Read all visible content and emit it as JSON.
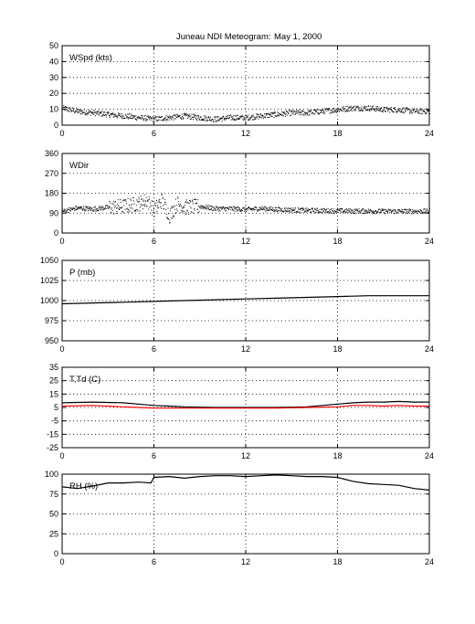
{
  "title": {
    "station": "Juneau NDI Meteogram:",
    "date": "May   1, 2000"
  },
  "chart_data": [
    {
      "type": "scatter",
      "label": "WSpd (kts)",
      "x_ticks": [
        "0",
        "6",
        "12",
        "18",
        "24"
      ],
      "xlim": [
        0,
        24
      ],
      "ylim": [
        0,
        50
      ],
      "y_ticks": [
        "0",
        "10",
        "20",
        "30",
        "40",
        "50"
      ],
      "grid": true,
      "series": [
        {
          "color": "#000000",
          "x": [
            0,
            1,
            2,
            3,
            4,
            5,
            6,
            7,
            8,
            9,
            10,
            11,
            12,
            13,
            14,
            15,
            16,
            17,
            18,
            19,
            20,
            21,
            22,
            23,
            24
          ],
          "y": [
            11,
            9,
            8,
            7,
            6,
            5,
            4,
            5,
            6,
            5,
            4,
            5,
            5,
            6,
            7,
            8,
            8,
            9,
            10,
            11,
            11,
            10,
            10,
            9,
            9
          ]
        }
      ]
    },
    {
      "type": "scatter",
      "label": "WDir",
      "x_ticks": [
        "0",
        "6",
        "12",
        "18",
        "24"
      ],
      "xlim": [
        0,
        24
      ],
      "ylim": [
        0,
        360
      ],
      "y_ticks": [
        "0",
        "90",
        "180",
        "270",
        "360"
      ],
      "grid": true,
      "series": [
        {
          "color": "#000000",
          "x": [
            0,
            1,
            2,
            3,
            4,
            5,
            5.5,
            6,
            6.5,
            7,
            7.5,
            8,
            9,
            10,
            11,
            12,
            13,
            14,
            15,
            16,
            17,
            18,
            19,
            20,
            21,
            22,
            23,
            24
          ],
          "y": [
            100,
            115,
            110,
            118,
            122,
            135,
            150,
            105,
            150,
            80,
            135,
            118,
            122,
            112,
            112,
            108,
            113,
            108,
            106,
            104,
            103,
            102,
            101,
            101,
            100,
            100,
            100,
            100
          ]
        }
      ]
    },
    {
      "type": "line",
      "label": "P (mb)",
      "x_ticks": [
        "0",
        "6",
        "12",
        "18",
        "24"
      ],
      "xlim": [
        0,
        24
      ],
      "ylim": [
        950,
        1050
      ],
      "y_ticks": [
        "950",
        "975",
        "1000",
        "1025",
        "1050"
      ],
      "grid": true,
      "series": [
        {
          "color": "#000000",
          "x": [
            0,
            2,
            4,
            6,
            8,
            10,
            12,
            14,
            16,
            18,
            20,
            22,
            24
          ],
          "y": [
            996,
            997,
            998,
            999,
            1000,
            1001,
            1002,
            1003,
            1004,
            1005,
            1006,
            1006,
            1006
          ]
        }
      ]
    },
    {
      "type": "line",
      "label": "T,Td (C)",
      "x_ticks": [
        "0",
        "6",
        "12",
        "18",
        "24"
      ],
      "xlim": [
        0,
        24
      ],
      "ylim": [
        -25,
        35
      ],
      "y_ticks": [
        "-25",
        "-15",
        "-5",
        "5",
        "15",
        "25",
        "35"
      ],
      "grid": true,
      "series": [
        {
          "color": "#000000",
          "x": [
            0,
            2,
            4,
            5,
            6,
            7,
            8,
            10,
            12,
            14,
            16,
            18,
            19,
            20,
            21,
            22,
            23,
            24
          ],
          "y": [
            8.5,
            9,
            8.5,
            7.5,
            6.5,
            6,
            5.5,
            5,
            5,
            5,
            5.5,
            7.5,
            8.5,
            9,
            9,
            9.5,
            9,
            9
          ]
        },
        {
          "color": "#ff0000",
          "x": [
            0,
            2,
            4,
            5,
            6,
            7,
            8,
            10,
            12,
            14,
            16,
            18,
            19,
            20,
            21,
            22,
            23,
            24
          ],
          "y": [
            6,
            6.5,
            5.5,
            5,
            4.5,
            4.5,
            4.5,
            4.5,
            4.5,
            4.5,
            5,
            5.5,
            6.5,
            6.5,
            6,
            6.5,
            6,
            6
          ]
        }
      ]
    },
    {
      "type": "line",
      "label": "RH (%)",
      "x_ticks": [
        "0",
        "6",
        "12",
        "18",
        "24"
      ],
      "xlim": [
        0,
        24
      ],
      "ylim": [
        0,
        100
      ],
      "y_ticks": [
        "0",
        "25",
        "50",
        "75",
        "100"
      ],
      "grid": true,
      "series": [
        {
          "color": "#000000",
          "x": [
            0,
            1,
            2,
            3,
            4,
            5,
            5.8,
            6,
            7,
            8,
            9,
            10,
            11,
            12,
            13,
            14,
            15,
            16,
            17,
            18,
            19,
            20,
            21,
            22,
            23,
            24
          ],
          "y": [
            84,
            82,
            85,
            89,
            89,
            90,
            89,
            96,
            97,
            95,
            97,
            98,
            98,
            97,
            98,
            99,
            98,
            97,
            97,
            96,
            91,
            88,
            87,
            86,
            82,
            80
          ]
        }
      ]
    }
  ]
}
